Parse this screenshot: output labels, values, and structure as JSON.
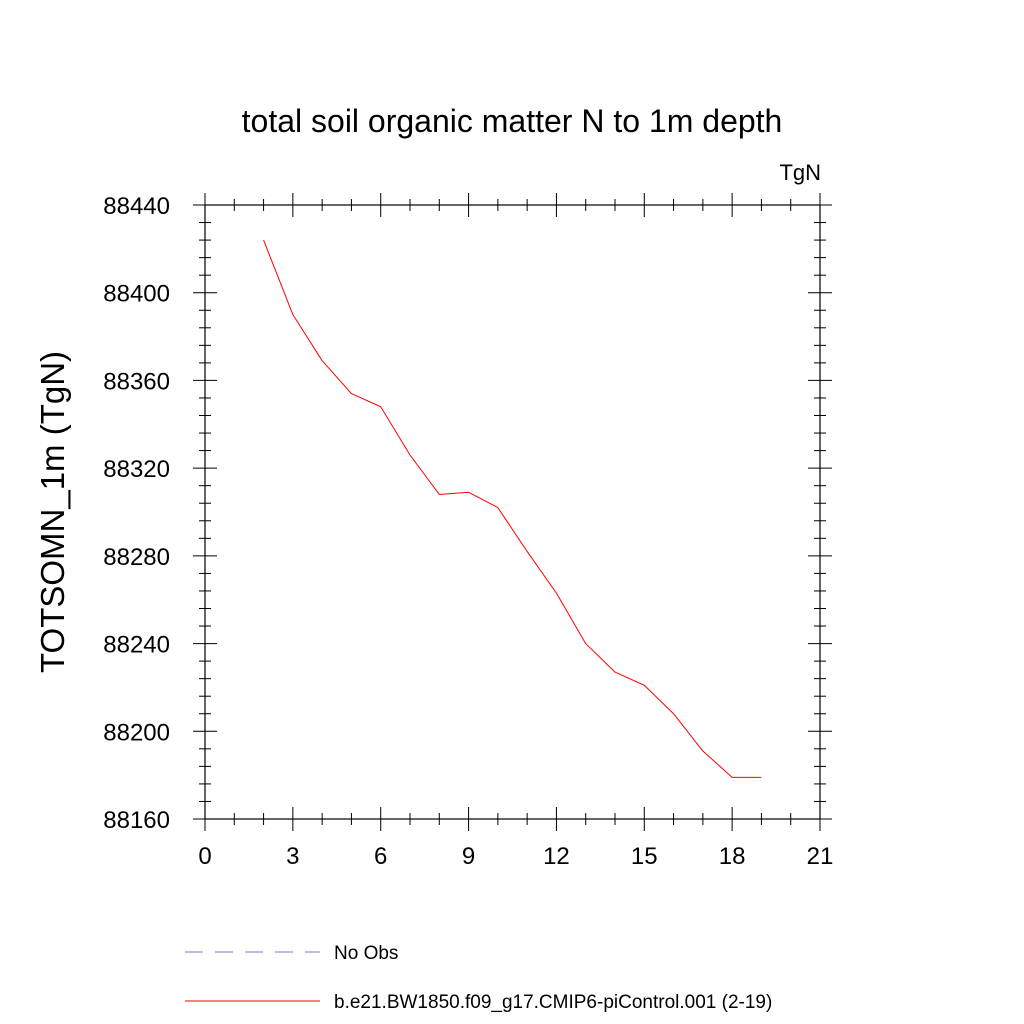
{
  "chart_data": {
    "type": "line",
    "title": "total soil organic matter N to 1m depth",
    "ylabel": "TOTSOMN_1m  (TgN)",
    "xlabel": "",
    "units": "TgN",
    "xlim": [
      0,
      21
    ],
    "ylim": [
      88160,
      88440
    ],
    "xticks": [
      0,
      3,
      6,
      9,
      12,
      15,
      18,
      21
    ],
    "xtick_labels": [
      "0",
      "3",
      "6",
      "9",
      "12",
      "15",
      "18",
      "21"
    ],
    "yticks": [
      88160,
      88200,
      88240,
      88280,
      88320,
      88360,
      88400,
      88440
    ],
    "ytick_labels": [
      "88160",
      "88200",
      "88240",
      "88280",
      "88320",
      "88360",
      "88400",
      "88440"
    ],
    "x_minor_step": 1,
    "y_minor_step": 8,
    "series": [
      {
        "name": "b.e21.BW1850.f09_g17.CMIP6-piControl.001 (2-19)",
        "color": "#ff0000",
        "dash": "solid",
        "x": [
          2,
          3,
          4,
          5,
          6,
          7,
          8,
          9,
          10,
          11,
          12,
          13,
          14,
          15,
          16,
          17,
          18,
          19
        ],
        "values": [
          88424,
          88390,
          88369,
          88354,
          88348,
          88326,
          88308,
          88309,
          88302,
          88282,
          88263,
          88240,
          88227,
          88221,
          88208,
          88191,
          88179,
          88179
        ]
      }
    ],
    "legend": [
      {
        "label": "No Obs",
        "color": "#7b7bd0",
        "dash": "dashed"
      },
      {
        "label": "b.e21.BW1850.f09_g17.CMIP6-piControl.001 (2-19)",
        "color": "#ff0000",
        "dash": "solid"
      }
    ],
    "legend_position": "bottom"
  }
}
